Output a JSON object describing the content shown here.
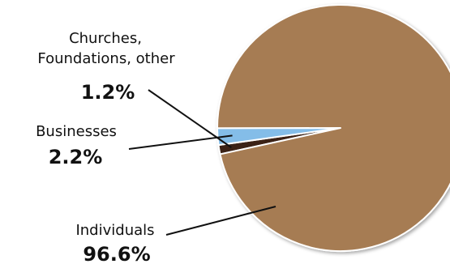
{
  "chart_data": {
    "type": "pie",
    "title": "",
    "legend": "none",
    "slices": [
      {
        "label": "Individuals",
        "value": 96.6,
        "value_label": "96.6%",
        "color": "#a67c52"
      },
      {
        "label": "Churches, Foundations, other",
        "label_lines": [
          "Churches,",
          "Foundations, other"
        ],
        "value": 1.2,
        "value_label": "1.2%",
        "color": "#3b2314"
      },
      {
        "label": "Businesses",
        "value": 2.2,
        "value_label": "2.2%",
        "color": "#84bde8"
      }
    ],
    "slice_border_color": "#ffffff"
  }
}
